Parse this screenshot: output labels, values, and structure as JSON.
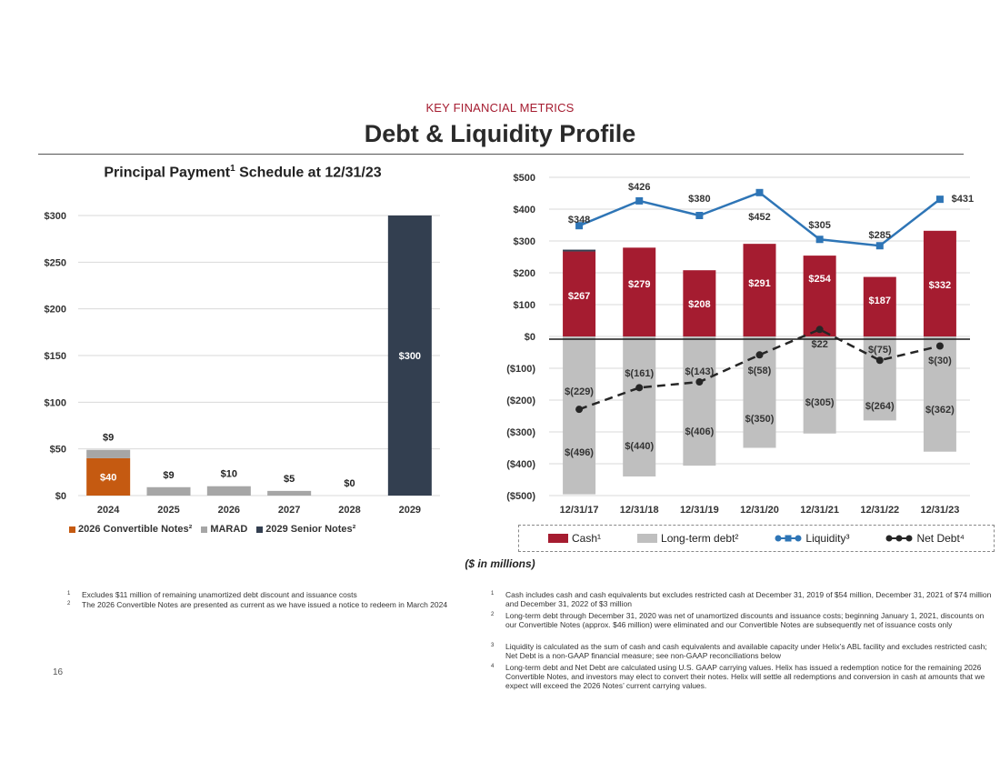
{
  "header": {
    "kicker": "KEY FINANCIAL METRICS",
    "title": "Debt & Liquidity Profile"
  },
  "left_chart_title": {
    "main": "Principal Payment",
    "sup": "1",
    "rest": " Schedule at 12/31/23"
  },
  "units_note": "($ in millions)",
  "page_number": "16",
  "colors": {
    "convertible": "#c55a11",
    "marad": "#a6a6a6",
    "senior": "#333f50",
    "cash": "#a51c30",
    "ltd": "#bfbfbf",
    "liquidity": "#2e75b6",
    "net_debt": "#262626"
  },
  "chart_data": [
    {
      "type": "bar",
      "stacked": true,
      "title": "Principal Payment1 Schedule at 12/31/23",
      "categories": [
        "2024",
        "2025",
        "2026",
        "2027",
        "2028",
        "2029"
      ],
      "series": [
        {
          "name": "2026 Convertible Notes²",
          "values": [
            40,
            0,
            0,
            0,
            0,
            0
          ]
        },
        {
          "name": "MARAD",
          "values": [
            9,
            9,
            10,
            5,
            0,
            0
          ]
        },
        {
          "name": "2029 Senior Notes²",
          "values": [
            0,
            0,
            0,
            0,
            0,
            300
          ]
        }
      ],
      "inner_labels": [
        {
          "category": "2024",
          "text": "$40"
        },
        {
          "category": "2029",
          "text": "$300"
        }
      ],
      "top_labels": [
        "$9",
        "$9",
        "$10",
        "$5",
        "$0",
        ""
      ],
      "yticks": [
        "$0",
        "$50",
        "$100",
        "$150",
        "$200",
        "$250",
        "$300"
      ],
      "ylim": [
        0,
        300
      ],
      "legend": "bottom"
    },
    {
      "type": "bar",
      "combo": "bar+line",
      "categories": [
        "12/31/17",
        "12/31/18",
        "12/31/19",
        "12/31/20",
        "12/31/21",
        "12/31/22",
        "12/31/23"
      ],
      "series": [
        {
          "name": "Cash¹",
          "values": [
            267,
            279,
            208,
            291,
            254,
            187,
            332
          ],
          "labels": [
            "$267",
            "$279",
            "$208",
            "$291",
            "$254",
            "$187",
            "$332"
          ]
        },
        {
          "name": "Long-term debt²",
          "values": [
            -496,
            -440,
            -406,
            -350,
            -305,
            -264,
            -362
          ],
          "labels": [
            "$(496)",
            "$(440)",
            "$(406)",
            "$(350)",
            "$(305)",
            "$(264)",
            "$(362)"
          ]
        },
        {
          "name": "Liquidity³",
          "type": "line",
          "values": [
            348,
            426,
            380,
            452,
            305,
            285,
            431
          ],
          "labels": [
            "$348",
            "$426",
            "$380",
            "$452",
            "$305",
            "$285",
            "$431"
          ]
        },
        {
          "name": "Net Debt⁴",
          "type": "line",
          "values": [
            -229,
            -161,
            -143,
            -58,
            22,
            -75,
            -30
          ],
          "labels": [
            "$(229)",
            "$(161)",
            "$(143)",
            "$(58)",
            "$22",
            "$(75)",
            "$(30)"
          ]
        }
      ],
      "yticks": [
        "($500)",
        "($400)",
        "($300)",
        "($200)",
        "($100)",
        "$0",
        "$100",
        "$200",
        "$300",
        "$400",
        "$500"
      ],
      "ylim": [
        -500,
        500
      ],
      "legend": "bottom"
    }
  ],
  "legend_left": [
    {
      "label": "2026 Convertible Notes²",
      "color_key": "convertible"
    },
    {
      "label": "MARAD",
      "color_key": "marad"
    },
    {
      "label": "2029 Senior Notes²",
      "color_key": "senior"
    }
  ],
  "legend_right": [
    {
      "label": "Cash¹"
    },
    {
      "label": "Long-term debt²"
    },
    {
      "label": "Liquidity³"
    },
    {
      "label": "Net Debt⁴"
    }
  ],
  "footnotes_left": [
    {
      "num": "1",
      "text": "Excludes $11 million of remaining unamortized debt discount and issuance costs"
    },
    {
      "num": "2",
      "text": "The 2026 Convertible Notes are presented as current as we have issued a notice to redeem in March 2024"
    }
  ],
  "footnotes_right": [
    {
      "num": "1",
      "text": "Cash includes cash and cash equivalents but excludes restricted cash at December 31, 2019 of $54 million, December 31, 2021 of $74 million and December 31, 2022 of $3 million"
    },
    {
      "num": "2",
      "text": "Long-term debt through December 31, 2020 was net of unamortized discounts and issuance costs; beginning January 1, 2021, discounts on our Convertible Notes (approx. $46 million) were eliminated and our Convertible Notes are subsequently net of issuance costs only"
    },
    {
      "num": "3",
      "text": "Liquidity is calculated as the sum of cash and cash equivalents and available capacity under Helix’s ABL facility and excludes restricted cash; Net Debt is a non-GAAP financial measure; see non-GAAP reconciliations below"
    },
    {
      "num": "4",
      "text": "Long-term debt and Net Debt are calculated using U.S. GAAP carrying values.  Helix has issued a redemption notice for the remaining 2026 Convertible Notes, and investors may elect to convert their notes.  Helix will settle all redemptions and conversion in cash at amounts that we expect will exceed the 2026 Notes’ current carrying values."
    }
  ]
}
